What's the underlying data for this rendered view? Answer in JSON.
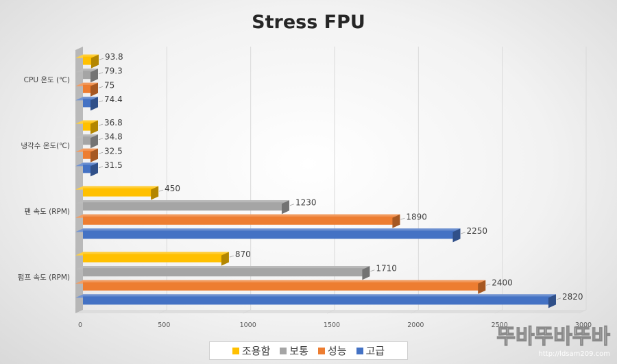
{
  "chart_data": {
    "type": "bar",
    "orientation": "horizontal",
    "title": "Stress FPU",
    "categories": [
      "CPU 온도 (℃)",
      "냉각수 온도(℃)",
      "팬 속도 (RPM)",
      "펌프 속도 (RPM)"
    ],
    "series": [
      {
        "name": "조용함",
        "color": "#ffc000",
        "values": [
          93.8,
          36.8,
          450,
          870
        ]
      },
      {
        "name": "보통",
        "color": "#a5a5a5",
        "values": [
          79.3,
          34.8,
          1230,
          1710
        ]
      },
      {
        "name": "성능",
        "color": "#ed7d31",
        "values": [
          75,
          32.5,
          1890,
          2400
        ]
      },
      {
        "name": "고급",
        "color": "#4472c4",
        "values": [
          74.4,
          31.5,
          2250,
          2820
        ]
      }
    ],
    "xlim": [
      0,
      3000
    ],
    "x_ticks": [
      "0",
      "500",
      "1000",
      "1500",
      "2000",
      "2500",
      "3000"
    ],
    "grid": true,
    "legend_position": "bottom",
    "three_d": true
  },
  "watermark": {
    "logo_text": "뚜바뚜바뚜바",
    "url_text": "http://ldsam209.com"
  }
}
